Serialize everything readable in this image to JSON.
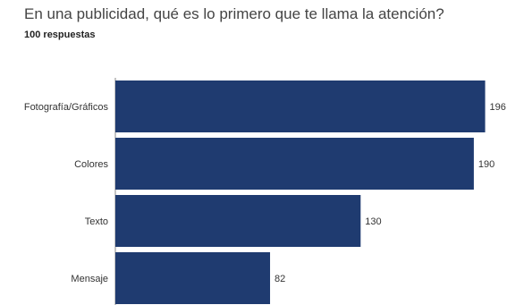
{
  "header": {
    "title": "En una publicidad, qué es lo primero que te llama la atención?",
    "subtitle": "100 respuestas"
  },
  "chart_data": {
    "type": "bar",
    "orientation": "horizontal",
    "title": "En una publicidad, qué es lo primero que te llama la atención?",
    "subtitle": "100 respuestas",
    "categories": [
      "Fotografía/Gráficos",
      "Colores",
      "Texto",
      "Mensaje"
    ],
    "values": [
      196,
      190,
      130,
      82
    ],
    "xlabel": "",
    "ylabel": "",
    "xlim": [
      0,
      200
    ],
    "grid": false,
    "legend": "none",
    "bar_color": "#1f3b70"
  }
}
